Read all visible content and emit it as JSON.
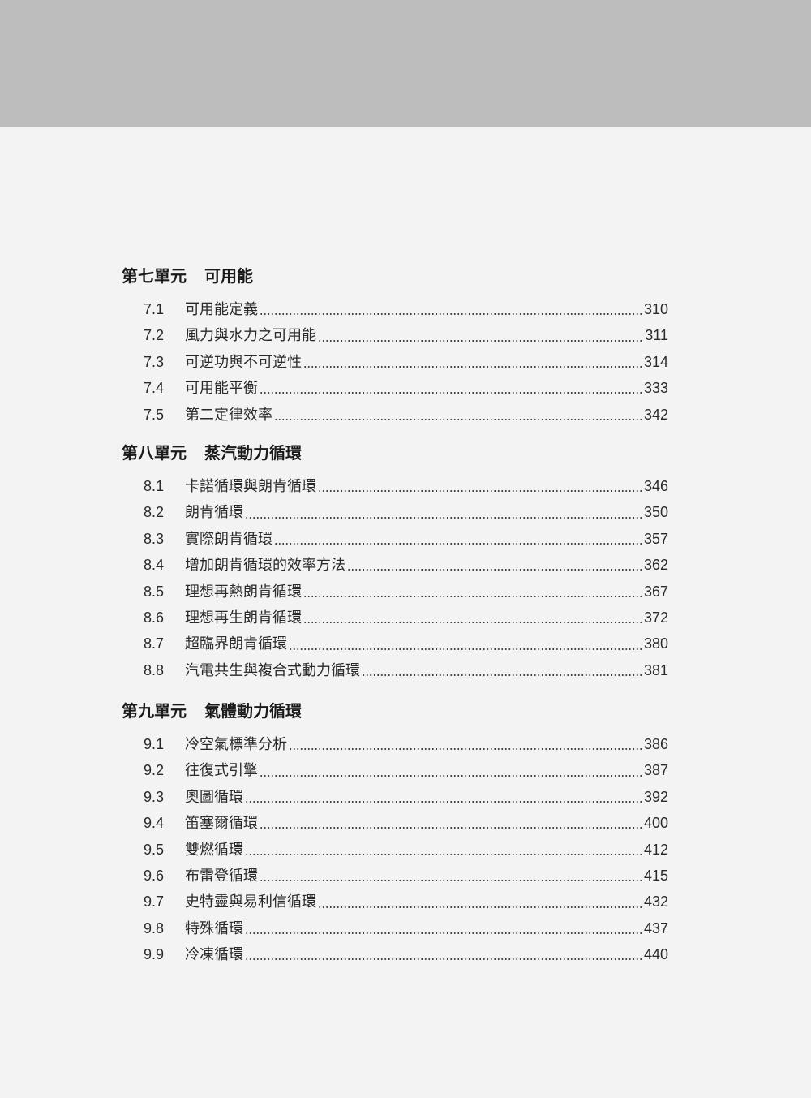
{
  "sections": [
    {
      "unit": "第七單元",
      "title": "可用能",
      "entries": [
        {
          "num": "7.1",
          "title": "可用能定義",
          "page": "310"
        },
        {
          "num": "7.2",
          "title": "風力與水力之可用能",
          "page": "311"
        },
        {
          "num": "7.3",
          "title": "可逆功與不可逆性",
          "page": "314"
        },
        {
          "num": "7.4",
          "title": "可用能平衡",
          "page": "333"
        },
        {
          "num": "7.5",
          "title": "第二定律效率",
          "page": "342"
        }
      ]
    },
    {
      "unit": "第八單元",
      "title": "蒸汽動力循環",
      "entries": [
        {
          "num": "8.1",
          "title": "卡諾循環與朗肯循環",
          "page": "346"
        },
        {
          "num": "8.2",
          "title": "朗肯循環",
          "page": "350"
        },
        {
          "num": "8.3",
          "title": "實際朗肯循環",
          "page": "357"
        },
        {
          "num": "8.4",
          "title": "增加朗肯循環的效率方法",
          "page": "362"
        },
        {
          "num": "8.5",
          "title": "理想再熱朗肯循環",
          "page": "367"
        },
        {
          "num": "8.6",
          "title": "理想再生朗肯循環",
          "page": "372"
        },
        {
          "num": "8.7",
          "title": "超臨界朗肯循環",
          "page": "380"
        },
        {
          "num": "8.8",
          "title": "汽電共生與複合式動力循環",
          "page": "381"
        }
      ]
    },
    {
      "unit": "第九單元",
      "title": "氣體動力循環",
      "entries": [
        {
          "num": "9.1",
          "title": "冷空氣標準分析",
          "page": "386"
        },
        {
          "num": "9.2",
          "title": "往復式引擎",
          "page": "387"
        },
        {
          "num": "9.3",
          "title": "奧圖循環",
          "page": "392"
        },
        {
          "num": "9.4",
          "title": "笛塞爾循環",
          "page": "400"
        },
        {
          "num": "9.5",
          "title": "雙燃循環",
          "page": "412"
        },
        {
          "num": "9.6",
          "title": "布雷登循環",
          "page": "415"
        },
        {
          "num": "9.7",
          "title": "史特靈與易利信循環",
          "page": "432"
        },
        {
          "num": "9.8",
          "title": "特殊循環",
          "page": "437"
        },
        {
          "num": "9.9",
          "title": "冷凍循環",
          "page": "440"
        }
      ]
    }
  ]
}
